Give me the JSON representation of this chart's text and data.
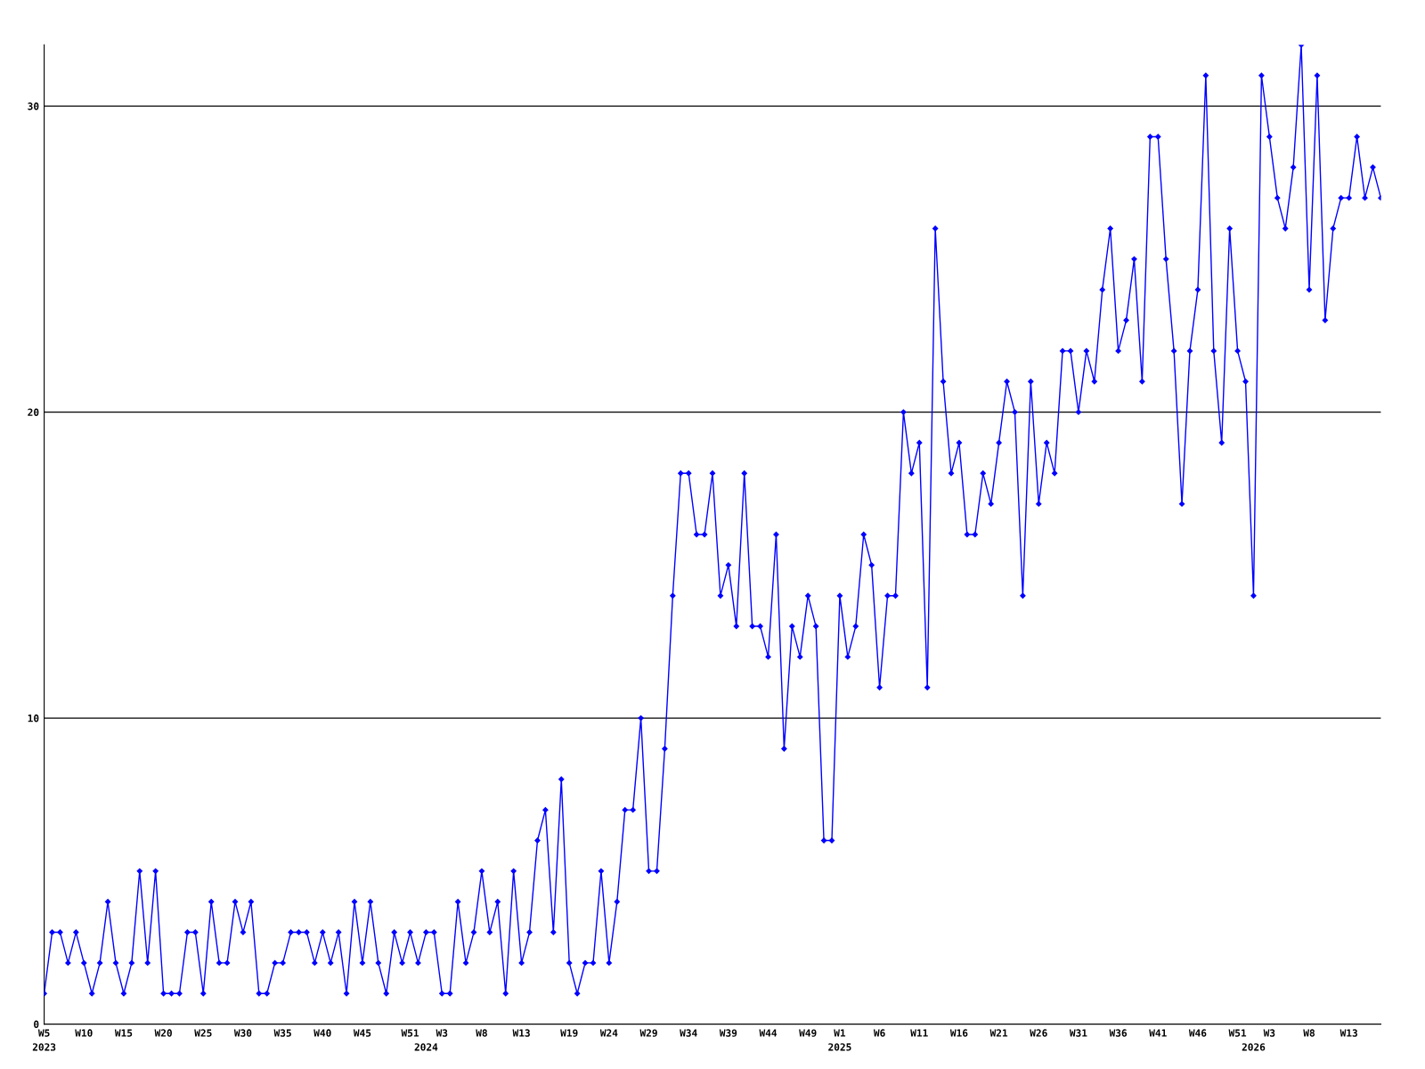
{
  "chart_data": {
    "type": "line",
    "categories": [
      "W5\n2023",
      null,
      null,
      null,
      null,
      "W10",
      null,
      null,
      null,
      null,
      "W15",
      null,
      null,
      null,
      null,
      "W20",
      null,
      null,
      null,
      null,
      "W25",
      null,
      null,
      null,
      null,
      "W30",
      null,
      null,
      null,
      null,
      "W35",
      null,
      null,
      null,
      null,
      "W40",
      null,
      null,
      null,
      null,
      "W45",
      null,
      null,
      null,
      null,
      null,
      "W51",
      null,
      "\n2024",
      null,
      "W3",
      null,
      null,
      null,
      null,
      "W8",
      null,
      null,
      null,
      null,
      "W13",
      null,
      null,
      null,
      null,
      null,
      "W19",
      null,
      null,
      null,
      null,
      "W24",
      null,
      null,
      null,
      null,
      "W29",
      null,
      null,
      null,
      null,
      "W34",
      null,
      null,
      null,
      null,
      "W39",
      null,
      null,
      null,
      null,
      "W44",
      null,
      null,
      null,
      null,
      "W49",
      null,
      null,
      null,
      "W1\n2025",
      null,
      null,
      null,
      null,
      "W6",
      null,
      null,
      null,
      null,
      "W11",
      null,
      null,
      null,
      null,
      "W16",
      null,
      null,
      null,
      null,
      "W21",
      null,
      null,
      null,
      null,
      "W26",
      null,
      null,
      null,
      null,
      "W31",
      null,
      null,
      null,
      null,
      "W36",
      null,
      null,
      null,
      null,
      "W41",
      null,
      null,
      null,
      null,
      "W46",
      null,
      null,
      null,
      null,
      "W51",
      null,
      "\n2026",
      null,
      "W3",
      null,
      null,
      null,
      null,
      "W8",
      null,
      null,
      null,
      null,
      "W13",
      null,
      null,
      null,
      null
    ],
    "series": [
      {
        "color": "#0000ff",
        "values": [
          1,
          3,
          3,
          2,
          3,
          2,
          1,
          2,
          4,
          2,
          1,
          2,
          5,
          2,
          5,
          1,
          1,
          1,
          3,
          3,
          1,
          4,
          2,
          2,
          4,
          3,
          4,
          1,
          1,
          2,
          2,
          3,
          3,
          3,
          2,
          3,
          2,
          3,
          1,
          4,
          2,
          4,
          2,
          1,
          3,
          2,
          3,
          2,
          3,
          3,
          1,
          1,
          4,
          2,
          3,
          5,
          3,
          4,
          1,
          5,
          2,
          3,
          6,
          7,
          3,
          8,
          2,
          1,
          2,
          2,
          5,
          2,
          4,
          7,
          7,
          10,
          5,
          5,
          9,
          14,
          18,
          18,
          16,
          16,
          18,
          14,
          15,
          13,
          18,
          13,
          13,
          12,
          16,
          9,
          13,
          12,
          14,
          13,
          6,
          6,
          14,
          12,
          13,
          16,
          15,
          11,
          14,
          14,
          20,
          18,
          19,
          11,
          26,
          21,
          18,
          19,
          16,
          16,
          18,
          17,
          19,
          21,
          20,
          14,
          21,
          17,
          19,
          18,
          22,
          22,
          20,
          22,
          21,
          24,
          26,
          22,
          23,
          25,
          21,
          29,
          29,
          25,
          22,
          17,
          22,
          24,
          31,
          22,
          19,
          26,
          22,
          21,
          14,
          31,
          29,
          27,
          26,
          28,
          32,
          24,
          31,
          23,
          26,
          27,
          27,
          29,
          27,
          28,
          27
        ]
      }
    ],
    "ylim": [
      0,
      32
    ],
    "yticks": [
      0,
      10,
      20,
      30
    ],
    "grid": "y",
    "marker": "diamond",
    "line_style": "solid"
  }
}
